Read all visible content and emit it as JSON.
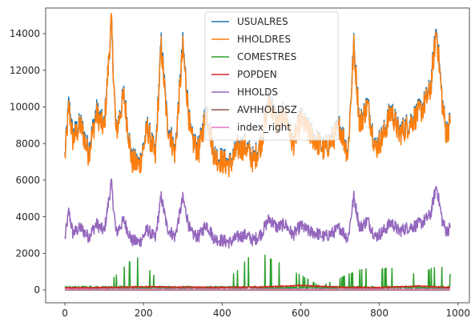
{
  "chart_data": {
    "type": "line",
    "title": "",
    "xlabel": "",
    "ylabel": "",
    "xlim": [
      -49,
      1029
    ],
    "ylim": [
      -700,
      15400
    ],
    "x_ticks": [
      0,
      200,
      400,
      600,
      800,
      1000
    ],
    "y_ticks": [
      0,
      2000,
      4000,
      6000,
      8000,
      10000,
      12000,
      14000
    ],
    "grid": false,
    "legend_position": "top-center",
    "n_points": 981,
    "series": [
      {
        "name": "USUALRES",
        "color": "#1f77b4",
        "points": [
          [
            0,
            7300
          ],
          [
            10,
            10200
          ],
          [
            20,
            8400
          ],
          [
            40,
            9100
          ],
          [
            60,
            7600
          ],
          [
            80,
            9800
          ],
          [
            100,
            8900
          ],
          [
            118,
            14600
          ],
          [
            130,
            8600
          ],
          [
            150,
            10700
          ],
          [
            170,
            7100
          ],
          [
            190,
            6900
          ],
          [
            210,
            8900
          ],
          [
            230,
            7300
          ],
          [
            245,
            13500
          ],
          [
            260,
            9300
          ],
          [
            280,
            7500
          ],
          [
            300,
            13400
          ],
          [
            320,
            8400
          ],
          [
            340,
            7600
          ],
          [
            360,
            9900
          ],
          [
            380,
            7400
          ],
          [
            400,
            7100
          ],
          [
            420,
            6900
          ],
          [
            440,
            7800
          ],
          [
            460,
            7900
          ],
          [
            480,
            7100
          ],
          [
            500,
            8200
          ],
          [
            520,
            10600
          ],
          [
            540,
            9100
          ],
          [
            560,
            9700
          ],
          [
            580,
            8000
          ],
          [
            600,
            9400
          ],
          [
            620,
            8700
          ],
          [
            640,
            8200
          ],
          [
            660,
            7700
          ],
          [
            680,
            8300
          ],
          [
            700,
            9000
          ],
          [
            720,
            7500
          ],
          [
            735,
            13400
          ],
          [
            750,
            9100
          ],
          [
            770,
            10200
          ],
          [
            790,
            7800
          ],
          [
            810,
            8500
          ],
          [
            830,
            9900
          ],
          [
            850,
            8600
          ],
          [
            870,
            9000
          ],
          [
            890,
            9500
          ],
          [
            910,
            10000
          ],
          [
            930,
            11000
          ],
          [
            945,
            14350
          ],
          [
            960,
            10300
          ],
          [
            970,
            8600
          ],
          [
            980,
            9200
          ]
        ]
      },
      {
        "name": "HHOLDRES",
        "color": "#ff7f0e",
        "points": [
          [
            0,
            7200
          ],
          [
            10,
            10000
          ],
          [
            20,
            8200
          ],
          [
            40,
            9000
          ],
          [
            60,
            7400
          ],
          [
            80,
            9600
          ],
          [
            100,
            8800
          ],
          [
            118,
            14700
          ],
          [
            130,
            8500
          ],
          [
            150,
            10600
          ],
          [
            170,
            7000
          ],
          [
            190,
            6800
          ],
          [
            210,
            8800
          ],
          [
            230,
            7200
          ],
          [
            245,
            13300
          ],
          [
            260,
            9100
          ],
          [
            280,
            7400
          ],
          [
            300,
            13200
          ],
          [
            320,
            8300
          ],
          [
            340,
            7500
          ],
          [
            360,
            9700
          ],
          [
            380,
            7300
          ],
          [
            400,
            7000
          ],
          [
            420,
            6800
          ],
          [
            440,
            7700
          ],
          [
            460,
            7800
          ],
          [
            480,
            7000
          ],
          [
            500,
            8100
          ],
          [
            520,
            10400
          ],
          [
            540,
            9000
          ],
          [
            560,
            9600
          ],
          [
            580,
            7900
          ],
          [
            600,
            9300
          ],
          [
            620,
            8600
          ],
          [
            640,
            8100
          ],
          [
            660,
            7600
          ],
          [
            680,
            8200
          ],
          [
            700,
            8900
          ],
          [
            720,
            7400
          ],
          [
            735,
            13300
          ],
          [
            750,
            9000
          ],
          [
            770,
            10100
          ],
          [
            790,
            7700
          ],
          [
            810,
            8400
          ],
          [
            830,
            9800
          ],
          [
            850,
            8500
          ],
          [
            870,
            8900
          ],
          [
            890,
            9400
          ],
          [
            910,
            9900
          ],
          [
            930,
            10900
          ],
          [
            945,
            14200
          ],
          [
            960,
            10200
          ],
          [
            970,
            8500
          ],
          [
            980,
            9100
          ]
        ]
      },
      {
        "name": "COMESTRES",
        "color": "#2ca02c",
        "points": [
          [
            0,
            120
          ],
          [
            100,
            150
          ],
          [
            180,
            1950
          ],
          [
            250,
            250
          ],
          [
            300,
            150
          ],
          [
            400,
            200
          ],
          [
            485,
            2200
          ],
          [
            550,
            1450
          ],
          [
            650,
            200
          ],
          [
            750,
            1150
          ],
          [
            840,
            1250
          ],
          [
            900,
            800
          ],
          [
            950,
            1400
          ],
          [
            980,
            900
          ]
        ]
      },
      {
        "name": "POPDEN",
        "color": "#d62728",
        "points": [
          [
            0,
            110
          ],
          [
            100,
            130
          ],
          [
            200,
            170
          ],
          [
            300,
            150
          ],
          [
            400,
            140
          ],
          [
            500,
            160
          ],
          [
            600,
            240
          ],
          [
            700,
            150
          ],
          [
            800,
            130
          ],
          [
            900,
            210
          ],
          [
            980,
            130
          ]
        ]
      },
      {
        "name": "HHOLDS",
        "color": "#9467bd",
        "points": [
          [
            0,
            2800
          ],
          [
            10,
            4300
          ],
          [
            20,
            3100
          ],
          [
            40,
            3400
          ],
          [
            60,
            2900
          ],
          [
            80,
            3600
          ],
          [
            100,
            3200
          ],
          [
            118,
            5850
          ],
          [
            130,
            3100
          ],
          [
            150,
            3800
          ],
          [
            170,
            2700
          ],
          [
            190,
            2600
          ],
          [
            210,
            3300
          ],
          [
            230,
            2800
          ],
          [
            245,
            5100
          ],
          [
            260,
            3400
          ],
          [
            280,
            2900
          ],
          [
            300,
            5000
          ],
          [
            320,
            3100
          ],
          [
            340,
            2900
          ],
          [
            360,
            3600
          ],
          [
            380,
            2800
          ],
          [
            400,
            2700
          ],
          [
            420,
            2600
          ],
          [
            440,
            2900
          ],
          [
            460,
            3000
          ],
          [
            480,
            2700
          ],
          [
            500,
            3100
          ],
          [
            520,
            3900
          ],
          [
            540,
            3400
          ],
          [
            560,
            3600
          ],
          [
            580,
            3000
          ],
          [
            600,
            3500
          ],
          [
            620,
            3200
          ],
          [
            640,
            3100
          ],
          [
            660,
            2900
          ],
          [
            680,
            3100
          ],
          [
            700,
            3400
          ],
          [
            720,
            2800
          ],
          [
            735,
            5100
          ],
          [
            750,
            3400
          ],
          [
            770,
            3800
          ],
          [
            790,
            2900
          ],
          [
            810,
            3200
          ],
          [
            830,
            3700
          ],
          [
            850,
            3200
          ],
          [
            870,
            3400
          ],
          [
            890,
            3500
          ],
          [
            910,
            3700
          ],
          [
            930,
            4100
          ],
          [
            945,
            5700
          ],
          [
            960,
            3800
          ],
          [
            970,
            3200
          ],
          [
            980,
            3400
          ]
        ]
      },
      {
        "name": "AVHHOLDSZ",
        "color": "#8c564b",
        "points": [
          [
            0,
            2.5
          ],
          [
            980,
            2.5
          ]
        ]
      },
      {
        "name": "index_right",
        "color": "#e377c2",
        "points": [
          [
            0,
            40
          ],
          [
            980,
            40
          ]
        ]
      }
    ]
  }
}
